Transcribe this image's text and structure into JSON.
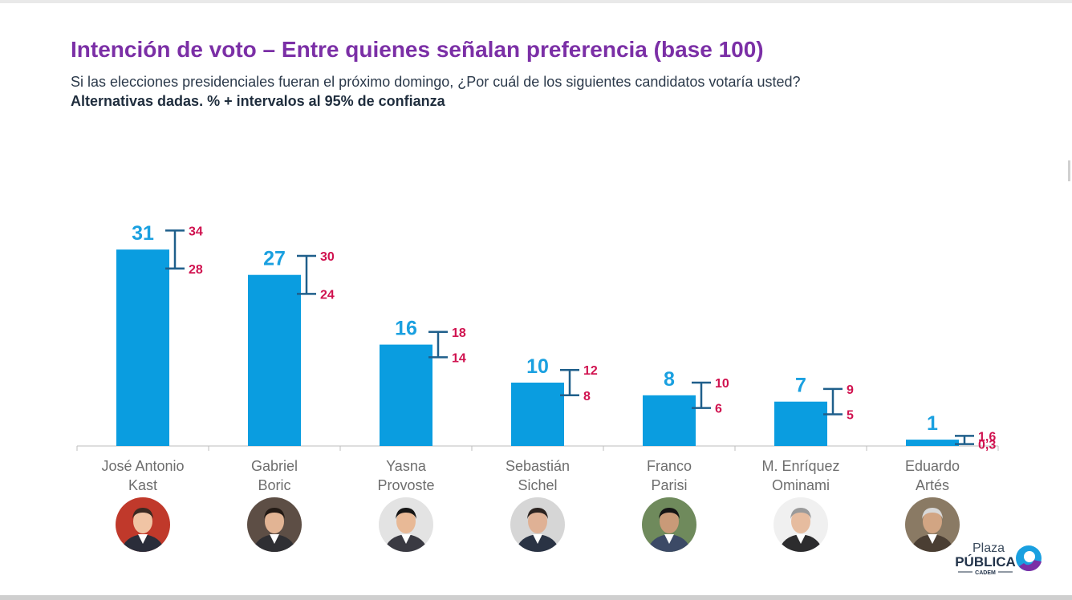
{
  "header": {
    "title": "Intención de voto – Entre quienes señalan preferencia (base 100)",
    "subtitle": "Si las elecciones presidenciales fueran el próximo domingo, ¿Por cuál de los siguientes candidatos votaría usted?",
    "note": "Alternativas dadas. % + intervalos al 95% de confianza"
  },
  "colors": {
    "title": "#7b2fa6",
    "bar": "#0a9de0",
    "value_label": "#1aa0e0",
    "error_bar": "#1f5f8b",
    "ci_label": "#d0124f"
  },
  "chart_data": {
    "type": "bar",
    "title": "Intención de voto – Entre quienes señalan preferencia (base 100)",
    "xlabel": "",
    "ylabel": "",
    "ylim": [
      0,
      40
    ],
    "grid": false,
    "categories": [
      [
        "José Antonio",
        "Kast"
      ],
      [
        "Gabriel",
        "Boric"
      ],
      [
        "Yasna",
        "Provoste"
      ],
      [
        "Sebastián",
        "Sichel"
      ],
      [
        "Franco",
        "Parisi"
      ],
      [
        "M. Enríquez",
        "Ominami"
      ],
      [
        "Eduardo",
        "Artés"
      ]
    ],
    "values": [
      31,
      27,
      16,
      10,
      8,
      7,
      1
    ],
    "value_labels": [
      "31",
      "27",
      "16",
      "10",
      "8",
      "7",
      "1"
    ],
    "ci_low": [
      28,
      24,
      14,
      8,
      6,
      5,
      0.3
    ],
    "ci_high": [
      34,
      30,
      18,
      12,
      10,
      9,
      1.6
    ],
    "ci_low_labels": [
      "28",
      "24",
      "14",
      "8",
      "6",
      "5",
      "0,3"
    ],
    "ci_high_labels": [
      "34",
      "30",
      "18",
      "12",
      "10",
      "9",
      "1,6"
    ]
  },
  "candidates": [
    {
      "photo_icon": "candidate-photo-kast",
      "bg": "#c0392b",
      "skin": "#f0c4a4",
      "hair": "#3b2a22",
      "suit": "#2a2d3a"
    },
    {
      "photo_icon": "candidate-photo-boric",
      "bg": "#5d4e45",
      "skin": "#e2b494",
      "hair": "#231a15",
      "suit": "#2f2f33"
    },
    {
      "photo_icon": "candidate-photo-provoste",
      "bg": "#e3e3e3",
      "skin": "#e8b996",
      "hair": "#161616",
      "suit": "#3a3a42"
    },
    {
      "photo_icon": "candidate-photo-sichel",
      "bg": "#d6d6d6",
      "skin": "#dfb195",
      "hair": "#2b2320",
      "suit": "#2a3344"
    },
    {
      "photo_icon": "candidate-photo-parisi",
      "bg": "#6f8a5c",
      "skin": "#c99a78",
      "hair": "#151515",
      "suit": "#3c4a66"
    },
    {
      "photo_icon": "candidate-photo-enriquez-ominami",
      "bg": "#f0f0f0",
      "skin": "#e6bc9f",
      "hair": "#9a9a9a",
      "suit": "#2c2c2e"
    },
    {
      "photo_icon": "candidate-photo-artes",
      "bg": "#8a7a64",
      "skin": "#d2a583",
      "hair": "#d8d8d8",
      "suit": "#4a3e33"
    }
  ],
  "logo": {
    "line1": "Plaza",
    "line2": "PÚBLICA",
    "line3": "CADEM",
    "icon": "plaza-publica-logo-icon"
  }
}
